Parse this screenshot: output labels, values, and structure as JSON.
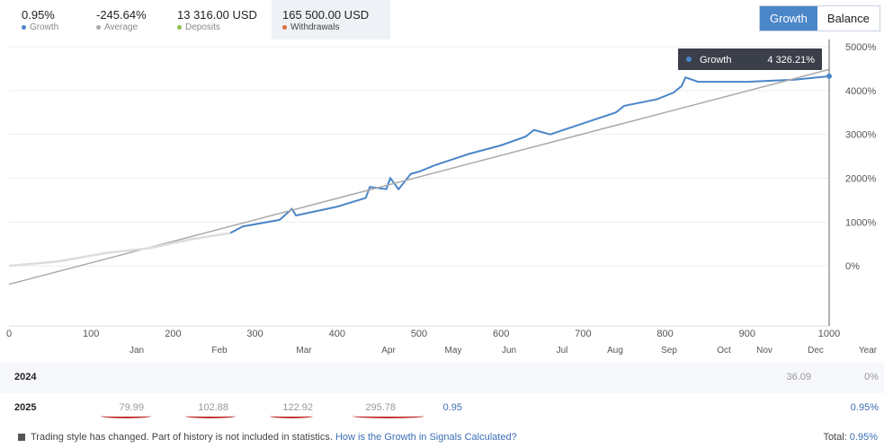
{
  "stats": [
    {
      "value": "0.95%",
      "label": "Growth",
      "color": "#4a86c8",
      "active": false
    },
    {
      "value": "-245.64%",
      "label": "Average",
      "color": "#aaaaaa",
      "active": false
    },
    {
      "value": "13 316.00 USD",
      "label": "Deposits",
      "color": "#8dbf4a",
      "active": false
    },
    {
      "value": "165 500.00 USD",
      "label": "Withdrawals",
      "color": "#e06b3b",
      "active": true
    }
  ],
  "view_toggle": {
    "growth": "Growth",
    "balance": "Balance",
    "selected": "Growth"
  },
  "tooltip": {
    "label": "Growth",
    "value": "4 326.21%"
  },
  "chart_data": {
    "type": "line",
    "x_ticks": [
      0,
      100,
      200,
      300,
      400,
      500,
      600,
      700,
      800,
      900,
      1000
    ],
    "y_ticks": [
      "5000%",
      "4000%",
      "3000%",
      "2000%",
      "1000%",
      "0%"
    ],
    "y_values": [
      5000,
      4000,
      3000,
      2000,
      1000,
      0
    ],
    "xlim": [
      0,
      1000
    ],
    "ylim": [
      -1000,
      5000
    ],
    "month_labels": [
      "Jan",
      "Feb",
      "Mar",
      "Apr",
      "May",
      "Jun",
      "Jul",
      "Aug",
      "Sep",
      "Oct",
      "Nov",
      "Dec",
      "Year"
    ],
    "grid": true,
    "series": [
      {
        "name": "Growth",
        "color": "#4a86c8",
        "x": [
          0,
          60,
          120,
          170,
          220,
          270,
          285,
          330,
          345,
          350,
          400,
          435,
          440,
          460,
          465,
          475,
          490,
          500,
          520,
          560,
          600,
          630,
          640,
          660,
          700,
          740,
          750,
          790,
          810,
          820,
          825,
          840,
          900,
          960,
          1000
        ],
        "y": [
          0,
          100,
          300,
          400,
          600,
          750,
          900,
          1050,
          1300,
          1150,
          1350,
          1550,
          1800,
          1750,
          2000,
          1750,
          2100,
          2150,
          2300,
          2550,
          2750,
          2950,
          3100,
          3000,
          3250,
          3500,
          3650,
          3800,
          3950,
          4100,
          4300,
          4200,
          4200,
          4250,
          4326
        ]
      },
      {
        "color": "#aaaaaa",
        "x": [
          0,
          1000
        ],
        "y": [
          -420,
          4480
        ]
      }
    ]
  },
  "table": {
    "rows": [
      {
        "year": "2024",
        "values": [
          "",
          "",
          "",
          "",
          "",
          "",
          "",
          "",
          "",
          "",
          "36.09"
        ],
        "year_total": "0%"
      },
      {
        "year": "2025",
        "values": [
          "79.99",
          "102.88",
          "122.92",
          "295.78",
          "0.95",
          "",
          "",
          "",
          "",
          "",
          ""
        ],
        "year_total": "0.95%"
      }
    ]
  },
  "footer": {
    "note": "Trading style has changed. Part of history is not included in statistics.",
    "link": "How is the Growth in Signals Calculated?",
    "total_label": "Total:",
    "total_value": "0.95%"
  }
}
